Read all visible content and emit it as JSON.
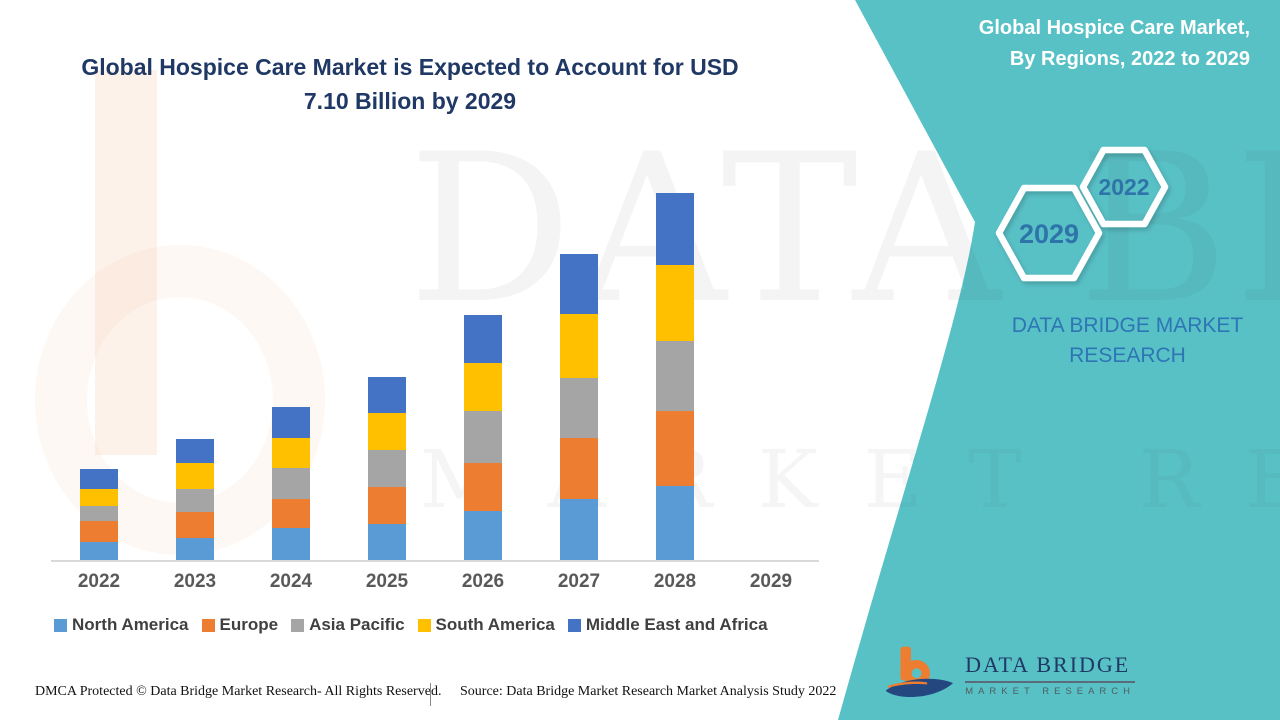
{
  "title": {
    "line1": "Global Hospice Care Market is Expected to Account for USD",
    "line2": "7.10 Billion by 2029"
  },
  "panel": {
    "title_line1": "Global Hospice Care Market,",
    "title_line2": "By Regions, 2022 to 2029",
    "hex_large_year": "2029",
    "hex_small_year": "2022",
    "brand_line1": "DATA BRIDGE MARKET",
    "brand_line2": "RESEARCH"
  },
  "watermark": {
    "line1": "DATA BRIDGE",
    "line2": "MARKET RESEARCH"
  },
  "logo": {
    "title": "DATA BRIDGE",
    "subtitle": "MARKET RESEARCH"
  },
  "footer": {
    "left": "DMCA Protected © Data Bridge Market Research- All Rights Reserved.",
    "right": "Source: Data Bridge Market Research Market Analysis Study 2022"
  },
  "colors": {
    "teal_panel": "#58C1C6",
    "title_navy": "#1F3864",
    "hex_year_text": "#2E74A9",
    "panel_brand_text": "#2E75B6",
    "axis_line": "#D9D9D9",
    "x_label": "#595959",
    "legend_text": "#404040",
    "logo_orange": "#ED7D31",
    "logo_navy": "#24477F"
  },
  "chart_data": {
    "type": "bar",
    "stacked": true,
    "title": "Global Hospice Care Market, By Regions, 2022 to 2029",
    "xlabel": "",
    "ylabel": "",
    "units": "USD billion (estimated from bar heights; no value axis shown)",
    "categories": [
      "2022",
      "2023",
      "2024",
      "2025",
      "2026",
      "2027",
      "2028",
      "2029"
    ],
    "series": [
      {
        "name": "North America",
        "color": "#5B9BD5",
        "values": [
          0.3,
          0.36,
          0.52,
          0.59,
          0.8,
          1.0,
          1.21,
          0
        ]
      },
      {
        "name": "Europe",
        "color": "#ED7D31",
        "values": [
          0.34,
          0.43,
          0.48,
          0.61,
          0.79,
          1.0,
          1.23,
          0
        ]
      },
      {
        "name": "Asia Pacific",
        "color": "#A5A5A5",
        "values": [
          0.25,
          0.38,
          0.51,
          0.61,
          0.85,
          0.98,
          1.15,
          0
        ]
      },
      {
        "name": "South America",
        "color": "#FFC000",
        "values": [
          0.28,
          0.43,
          0.49,
          0.61,
          0.79,
          1.05,
          1.25,
          0
        ]
      },
      {
        "name": "Middle East and Africa",
        "color": "#4472C4",
        "values": [
          0.33,
          0.39,
          0.51,
          0.59,
          0.79,
          0.98,
          1.18,
          0
        ]
      }
    ],
    "totals_estimated": [
      1.5,
      2.0,
      2.5,
      3.0,
      4.0,
      5.0,
      6.0,
      null
    ],
    "projection_2029_usd_billion": 7.1,
    "ylim": [
      0,
      6.5
    ],
    "grid": false,
    "legend_position": "bottom",
    "pixels_per_unit": 61
  }
}
